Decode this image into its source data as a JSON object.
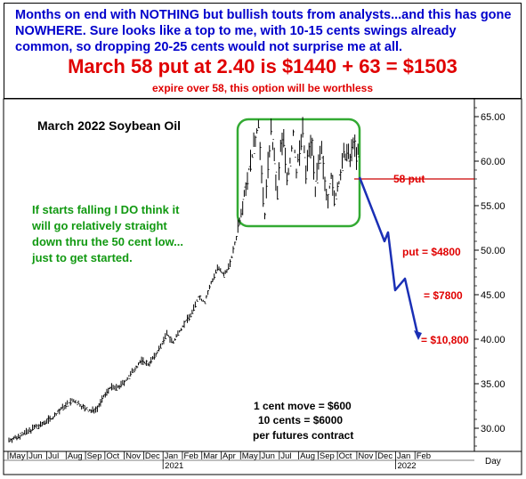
{
  "header": {
    "line1": "Months on end with NOTHING but bullish touts from analysts...and this has gone NOWHERE. Sure looks like a top to me, with 10-15 cents swings already common, so dropping 20-25 cents would not surprise me at all.",
    "line2": "March 58 put at 2.40 is $1440 + 63 = $1503",
    "line3": "expire over 58, this option will be worthless"
  },
  "chart_data": {
    "type": "bar",
    "title": "March 2022 Soybean Oil",
    "ylim": [
      27.5,
      66.5
    ],
    "y_ticks": [
      30,
      35,
      40,
      45,
      50,
      55,
      60,
      65
    ],
    "y_tick_labels": [
      "30.00",
      "35.00",
      "40.00",
      "45.00",
      "50.00",
      "55.00",
      "60.00",
      "65.00"
    ],
    "x_months": [
      "May",
      "Jun",
      "Jul",
      "Aug",
      "Sep",
      "Oct",
      "Nov",
      "Dec",
      "Jan",
      "Feb",
      "Mar",
      "Apr",
      "May",
      "Jun",
      "Jul",
      "Aug",
      "Sep",
      "Oct",
      "Nov",
      "Dec",
      "Jan",
      "Feb"
    ],
    "x_years": [
      "2021",
      "2022"
    ],
    "x_axis_unit": "Day",
    "price_path": [
      [
        0,
        28.7
      ],
      [
        4,
        28.9
      ],
      [
        8,
        29.3
      ],
      [
        12,
        29.6
      ],
      [
        16,
        30.1
      ],
      [
        20,
        30.3
      ],
      [
        24,
        30.9
      ],
      [
        28,
        31.2
      ],
      [
        32,
        32.0
      ],
      [
        36,
        32.6
      ],
      [
        40,
        33.1
      ],
      [
        44,
        32.8
      ],
      [
        48,
        32.2
      ],
      [
        52,
        31.9
      ],
      [
        56,
        32.3
      ],
      [
        60,
        33.5
      ],
      [
        64,
        34.6
      ],
      [
        68,
        34.5
      ],
      [
        72,
        35.0
      ],
      [
        76,
        35.8
      ],
      [
        80,
        36.8
      ],
      [
        84,
        37.6
      ],
      [
        88,
        37.2
      ],
      [
        92,
        38.0
      ],
      [
        96,
        39.2
      ],
      [
        100,
        40.6
      ],
      [
        104,
        39.6
      ],
      [
        108,
        41.0
      ],
      [
        112,
        42.0
      ],
      [
        116,
        43.0
      ],
      [
        120,
        44.8
      ],
      [
        124,
        44.2
      ],
      [
        128,
        46.3
      ],
      [
        132,
        48.0
      ],
      [
        136,
        47.2
      ],
      [
        140,
        48.5
      ],
      [
        144,
        51.5
      ],
      [
        148,
        55.5
      ],
      [
        152,
        59.0
      ],
      [
        156,
        62.5
      ],
      [
        158,
        64.5
      ],
      [
        160,
        58.0
      ],
      [
        162,
        54.0
      ],
      [
        164,
        59.5
      ],
      [
        166,
        63.5
      ],
      [
        168,
        60.0
      ],
      [
        170,
        56.0
      ],
      [
        172,
        61.5
      ],
      [
        174,
        62.5
      ],
      [
        176,
        58.0
      ],
      [
        178,
        60.0
      ],
      [
        180,
        63.0
      ],
      [
        182,
        59.0
      ],
      [
        184,
        61.0
      ],
      [
        186,
        63.5
      ],
      [
        188,
        58.5
      ],
      [
        190,
        61.5
      ],
      [
        192,
        62.0
      ],
      [
        194,
        57.0
      ],
      [
        196,
        59.5
      ],
      [
        198,
        61.0
      ],
      [
        200,
        57.5
      ],
      [
        202,
        56.0
      ],
      [
        204,
        58.5
      ],
      [
        206,
        55.5
      ],
      [
        208,
        57.0
      ],
      [
        210,
        58.5
      ],
      [
        212,
        60.5
      ],
      [
        214,
        61.0
      ],
      [
        216,
        60.0
      ],
      [
        218,
        62.5
      ],
      [
        220,
        60.5
      ],
      [
        222,
        61.0
      ]
    ],
    "projection": [
      [
        58.2,
        0
      ],
      [
        51.0,
        1
      ],
      [
        52.0,
        2
      ],
      [
        45.5,
        3
      ],
      [
        46.8,
        4
      ],
      [
        40.2,
        5
      ]
    ],
    "annotations": {
      "put_58": "58 put",
      "put_4800": "put = $4800",
      "put_7800": "= $7800",
      "put_10800": "= $10,800",
      "comment": [
        "If starts falling I DO think it",
        "will go relatively straight",
        "down thru the 50 cent low...",
        "just to get started."
      ],
      "contract": [
        "1 cent move = $600",
        "10 cents = $6000",
        "per futures contract"
      ]
    }
  },
  "colors": {
    "header_blue": "#0000cc",
    "header_red": "#e00000",
    "annotation_red": "#e00000",
    "comment_green": "#119911",
    "box_green": "#33aa33",
    "projection_blue": "#1a2fb5",
    "price_black": "#000000"
  }
}
